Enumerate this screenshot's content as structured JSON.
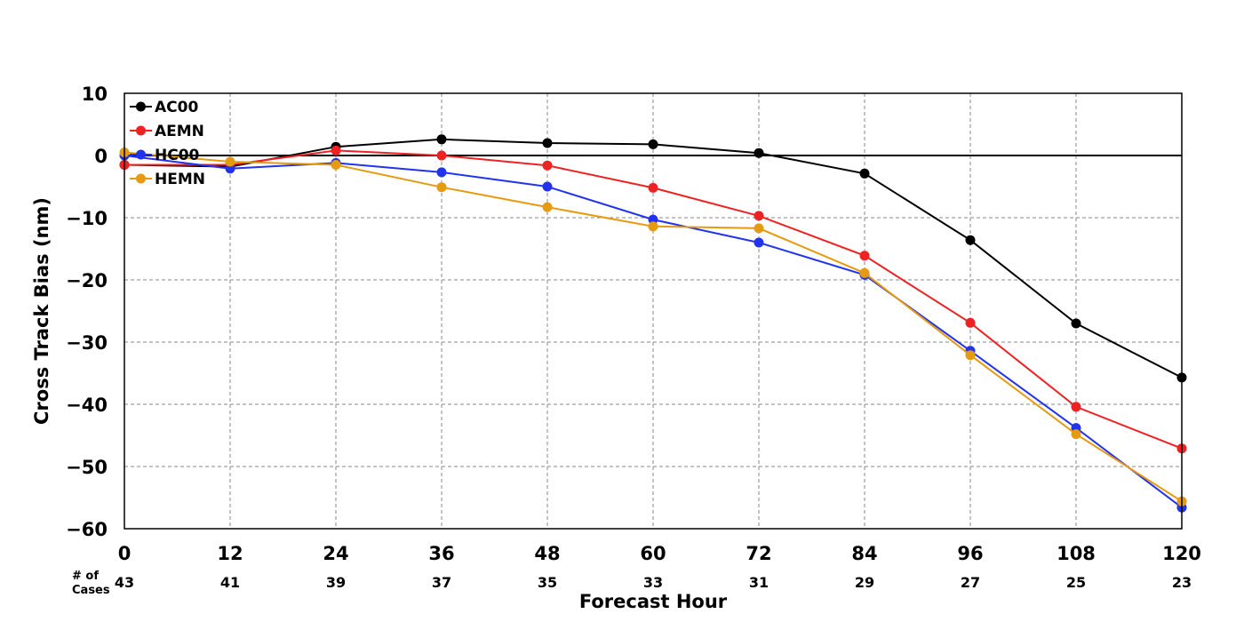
{
  "chart_data": {
    "type": "line",
    "xlabel": "Forecast Hour",
    "ylabel": "Cross Track Bias (nm)",
    "xlim": [
      0,
      120
    ],
    "ylim": [
      -60,
      10
    ],
    "x": [
      0,
      12,
      24,
      36,
      48,
      60,
      72,
      84,
      96,
      108,
      120
    ],
    "x_tick_labels": [
      "0",
      "12",
      "24",
      "36",
      "48",
      "60",
      "72",
      "84",
      "96",
      "108",
      "120"
    ],
    "y_ticks": [
      10,
      0,
      -10,
      -20,
      -30,
      -40,
      -50,
      -60
    ],
    "y_tick_labels": [
      "10",
      "0",
      "−10",
      "−20",
      "−30",
      "−40",
      "−50",
      "−60"
    ],
    "grid": true,
    "zero_line": true,
    "legend_position": "top-left",
    "cases_title": [
      "# of",
      "Cases"
    ],
    "cases": [
      "43",
      "41",
      "39",
      "37",
      "35",
      "33",
      "31",
      "29",
      "27",
      "25",
      "23"
    ],
    "series": [
      {
        "name": "AC00",
        "color": "#000000",
        "values": [
          -1.5,
          -1.8,
          1.4,
          2.6,
          2.0,
          1.8,
          0.4,
          -2.9,
          -13.6,
          -27.0,
          -35.7
        ]
      },
      {
        "name": "AEMN",
        "color": "#ee2222",
        "values": [
          -1.5,
          -1.5,
          0.8,
          0.0,
          -1.6,
          -5.2,
          -9.7,
          -16.1,
          -26.9,
          -40.4,
          -47.1
        ]
      },
      {
        "name": "HC00",
        "color": "#2233ee",
        "values": [
          0.0,
          -2.1,
          -1.2,
          -2.7,
          -5.0,
          -10.3,
          -14.0,
          -19.2,
          -31.4,
          -43.8,
          -56.6
        ]
      },
      {
        "name": "HEMN",
        "color": "#e69a10",
        "values": [
          0.5,
          -1.0,
          -1.5,
          -5.1,
          -8.3,
          -11.4,
          -11.7,
          -18.9,
          -32.1,
          -44.8,
          -55.6
        ]
      }
    ]
  }
}
